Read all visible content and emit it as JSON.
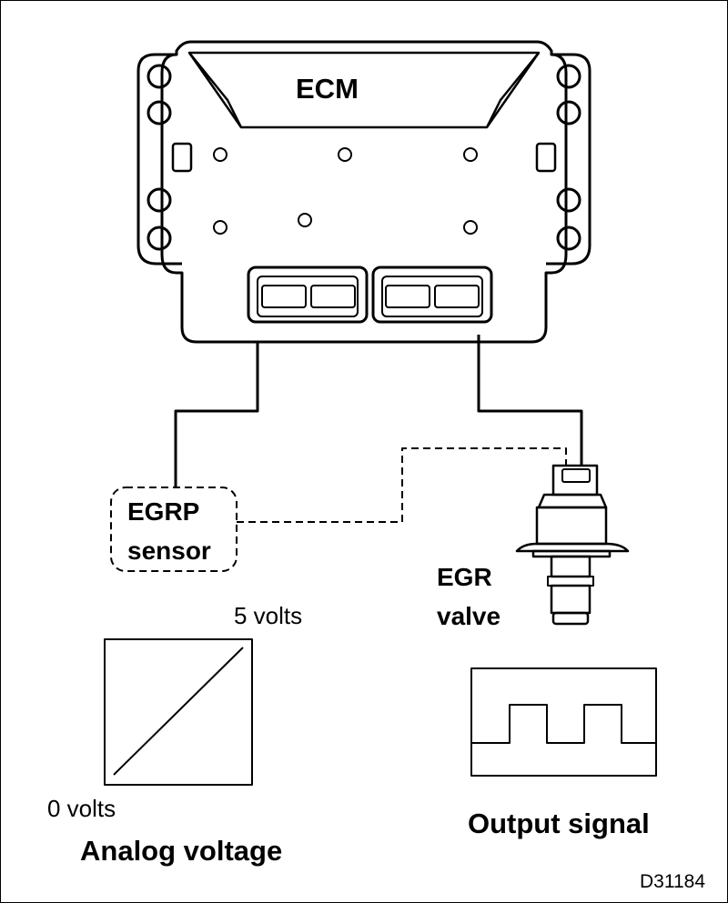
{
  "ecm": {
    "label": "ECM"
  },
  "sensor": {
    "line1": "EGRP",
    "line2": "sensor"
  },
  "valve": {
    "line1": "EGR",
    "line2": "valve"
  },
  "analog": {
    "max_label": "5 volts",
    "min_label": "0 volts",
    "caption": "Analog voltage"
  },
  "output": {
    "caption": "Output signal"
  },
  "figure_id": "D31184"
}
